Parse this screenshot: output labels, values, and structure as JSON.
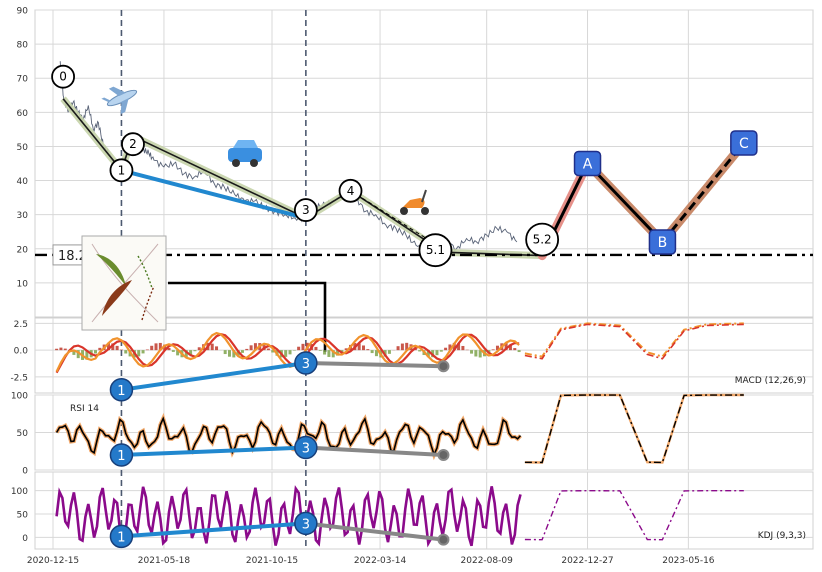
{
  "chart_data": [
    {
      "type": "line",
      "panel": "price",
      "title": "",
      "ylim": [
        0,
        90
      ],
      "yticks": [
        10,
        20,
        30,
        40,
        50,
        60,
        70,
        80,
        90
      ],
      "grid": true,
      "horizontal_line": {
        "value": 18.2,
        "label": "18.2"
      },
      "vertical_markers": [
        "2021-03-20",
        "2021-12-01"
      ],
      "series": [
        {
          "name": "",
          "points": [
            [
              "2020-12-25",
              75
            ],
            [
              "2020-12-29",
              65
            ],
            [
              "2021-01-05",
              60
            ],
            [
              "2021-01-12",
              63
            ],
            [
              "2021-01-19",
              60
            ],
            [
              "2021-01-26",
              58
            ],
            [
              "2021-02-02",
              62
            ],
            [
              "2021-02-09",
              55
            ],
            [
              "2021-02-16",
              57
            ],
            [
              "2021-02-23",
              50
            ],
            [
              "2021-03-02",
              48
            ],
            [
              "2021-03-09",
              45
            ],
            [
              "2021-03-16",
              44
            ],
            [
              "2021-03-23",
              45
            ],
            [
              "2021-03-30",
              52
            ],
            [
              "2021-04-06",
              51
            ],
            [
              "2021-04-13",
              50
            ],
            [
              "2021-04-20",
              49
            ],
            [
              "2021-04-27",
              48
            ],
            [
              "2021-05-04",
              46
            ],
            [
              "2021-05-18",
              44
            ],
            [
              "2021-06-01",
              45
            ],
            [
              "2021-06-15",
              42
            ],
            [
              "2021-06-29",
              41
            ],
            [
              "2021-07-13",
              43
            ],
            [
              "2021-07-27",
              39
            ],
            [
              "2021-08-10",
              38
            ],
            [
              "2021-08-24",
              36
            ],
            [
              "2021-09-07",
              34
            ],
            [
              "2021-09-21",
              34
            ],
            [
              "2021-10-05",
              32
            ],
            [
              "2021-10-19",
              31
            ],
            [
              "2021-11-02",
              30
            ],
            [
              "2021-11-16",
              29
            ],
            [
              "2021-11-30",
              29
            ],
            [
              "2021-12-14",
              32
            ],
            [
              "2021-12-28",
              33
            ],
            [
              "2022-01-11",
              34
            ],
            [
              "2022-01-25",
              37
            ],
            [
              "2022-02-08",
              35
            ],
            [
              "2022-02-22",
              31
            ],
            [
              "2022-03-08",
              30
            ],
            [
              "2022-03-22",
              27
            ],
            [
              "2022-04-05",
              26
            ],
            [
              "2022-04-19",
              24
            ],
            [
              "2022-05-03",
              21
            ],
            [
              "2022-05-17",
              19
            ],
            [
              "2022-05-31",
              20
            ],
            [
              "2022-06-14",
              22
            ],
            [
              "2022-06-28",
              20
            ],
            [
              "2022-07-12",
              23
            ],
            [
              "2022-07-26",
              22
            ],
            [
              "2022-08-09",
              24
            ],
            [
              "2022-08-23",
              26
            ],
            [
              "2022-09-06",
              25
            ],
            [
              "2022-09-20",
              22
            ]
          ]
        }
      ],
      "wave_points": [
        {
          "label": "0",
          "date": "2020-12-29",
          "value": 64
        },
        {
          "label": "1",
          "date": "2021-03-20",
          "value": 43
        },
        {
          "label": "2",
          "date": "2021-04-05",
          "value": 53
        },
        {
          "label": "3",
          "date": "2021-12-01",
          "value": 29
        },
        {
          "label": "4",
          "date": "2022-02-01",
          "value": 37
        },
        {
          "label": "5.1",
          "date": "2022-06-10",
          "value": 19
        },
        {
          "label": "5.2",
          "date": "2022-10-25",
          "value": 18
        }
      ],
      "projection_points": [
        {
          "label": "A",
          "date": "2022-12-27",
          "value": 45
        },
        {
          "label": "B",
          "date": "2023-04-10",
          "value": 22
        },
        {
          "label": "C",
          "date": "2023-08-01",
          "value": 51
        }
      ]
    },
    {
      "type": "line",
      "panel": "macd",
      "label": "MACD (12,26,9)",
      "ylim": [
        -4,
        3
      ],
      "yticks": [
        2.5,
        0.0,
        -2.5
      ],
      "annotations": [
        {
          "label": "1",
          "date": "2021-03-20",
          "value": -3.7
        },
        {
          "label": "3",
          "date": "2021-12-01",
          "value": -1.2
        },
        {
          "label": "",
          "date": "2022-06-10",
          "value": -1.5
        }
      ]
    },
    {
      "type": "line",
      "panel": "rsi",
      "label": "RSI 14",
      "ylim": [
        0,
        100
      ],
      "yticks": [
        100,
        50,
        0
      ],
      "annotations": [
        {
          "label": "1",
          "date": "2021-03-20",
          "value": 20
        },
        {
          "label": "3",
          "date": "2021-12-01",
          "value": 30
        },
        {
          "label": "",
          "date": "2022-06-10",
          "value": 20
        }
      ]
    },
    {
      "type": "line",
      "panel": "kdj",
      "label": "KDJ (9,3,3)",
      "ylim": [
        -25,
        140
      ],
      "yticks": [
        100,
        50,
        0
      ],
      "annotations": [
        {
          "label": "1",
          "date": "2021-03-20",
          "value": 2
        },
        {
          "label": "3",
          "date": "2021-12-01",
          "value": 30
        },
        {
          "label": "",
          "date": "2022-06-10",
          "value": -5
        }
      ]
    }
  ],
  "x_axis": {
    "range": [
      "2020-11-20",
      "2023-11-05"
    ],
    "tick_labels": [
      "2020-12-15",
      "2021-05-18",
      "2021-10-15",
      "2022-03-14",
      "2022-08-09",
      "2022-12-27",
      "2023-05-16"
    ]
  },
  "colors": {
    "price": "#5a6478",
    "wave_fill": "#c5d3a8",
    "down_leg": "#2188cf",
    "projection_up": "#e69089",
    "projection_down": "#c98a6a",
    "macd_line": "#f1932d",
    "signal_line": "#d9352b",
    "hist_pos": "#c0392b",
    "hist_neg": "#7ea34b",
    "rsi": "#000000",
    "kdj": "#8b0a8b",
    "label_box": "#3a6fd9"
  },
  "icons": [
    "airplane-icon",
    "car-icon",
    "scooter-icon",
    "plant-diagram-image"
  ]
}
